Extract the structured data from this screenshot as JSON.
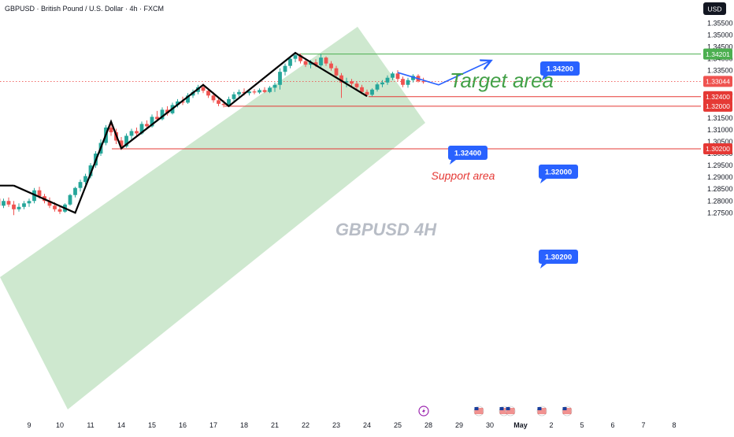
{
  "header": {
    "symbol_title": "GBPUSD · British Pound / U.S. Dollar · 4h · FXCM",
    "currency_button": "USD"
  },
  "watermark": "GBPUSD 4H",
  "annotations": {
    "target_text": "Target area",
    "support_text": "Support area"
  },
  "colors": {
    "bull": "#26a69a",
    "bear": "#ef5350",
    "channel": "#a5d6a7",
    "target": "#4caf50",
    "support": "#e53935",
    "callout": "#2962ff",
    "projection": "#2962ff"
  },
  "chart_data": {
    "type": "candlestick",
    "title": "GBPUSD · British Pound / U.S. Dollar · 4h · FXCM",
    "ylim": [
      1.2715,
      1.3565
    ],
    "y_ticks": [
      "1.35500",
      "1.35000",
      "1.34500",
      "1.34000",
      "1.33500",
      "1.32500",
      "1.31500",
      "1.31000",
      "1.30500",
      "1.30000",
      "1.29500",
      "1.29000",
      "1.28500",
      "1.28000",
      "1.27500"
    ],
    "x_ticks": [
      "9",
      "10",
      "11",
      "14",
      "15",
      "16",
      "17",
      "18",
      "21",
      "22",
      "23",
      "24",
      "25",
      "28",
      "29",
      "30",
      "May",
      "2",
      "5",
      "6",
      "7",
      "8"
    ],
    "current_price": "1.33044",
    "price_labels": [
      "1.34201",
      "1.33044",
      "1.32400",
      "1.32000",
      "1.30200"
    ],
    "levels": [
      {
        "name": "Target area",
        "value": 1.342,
        "label": "1.34200"
      },
      {
        "name": "Support area",
        "value": 1.324,
        "label": "1.32400"
      },
      {
        "value": 1.32,
        "label": "1.32000"
      },
      {
        "value": 1.302,
        "label": "1.30200"
      }
    ],
    "zigzag": [
      {
        "x": "Apr 8 12:00",
        "y": 1.2865
      },
      {
        "x": "Apr 10 12:00",
        "y": 1.275
      },
      {
        "x": "Apr 11 16:00",
        "y": 1.3135
      },
      {
        "x": "Apr 14 00:00",
        "y": 1.3022
      },
      {
        "x": "Apr 16 16:00",
        "y": 1.329
      },
      {
        "x": "Apr 17 12:00",
        "y": 1.32
      },
      {
        "x": "Apr 21 16:00",
        "y": 1.3425
      },
      {
        "x": "Apr 24 00:00",
        "y": 1.3242
      }
    ],
    "projection": [
      {
        "x": "Apr 25 00:00",
        "y": 1.3342
      },
      {
        "x": "Apr 26 08:00",
        "y": 1.329
      },
      {
        "x": "Apr 30 00:00",
        "y": 1.339
      }
    ],
    "ohlc": [
      {
        "t": "Apr 8 00:00",
        "o": 1.281,
        "h": 1.282,
        "l": 1.2765,
        "c": 1.278
      },
      {
        "t": "Apr 8 04:00",
        "o": 1.278,
        "h": 1.281,
        "l": 1.277,
        "c": 1.28
      },
      {
        "t": "Apr 8 08:00",
        "o": 1.28,
        "h": 1.2815,
        "l": 1.2775,
        "c": 1.2785
      },
      {
        "t": "Apr 8 12:00",
        "o": 1.2785,
        "h": 1.28,
        "l": 1.274,
        "c": 1.2765
      },
      {
        "t": "Apr 8 16:00",
        "o": 1.2765,
        "h": 1.279,
        "l": 1.2755,
        "c": 1.2775
      },
      {
        "t": "Apr 8 20:00",
        "o": 1.2775,
        "h": 1.28,
        "l": 1.2765,
        "c": 1.279
      },
      {
        "t": "Apr 9 00:00",
        "o": 1.279,
        "h": 1.281,
        "l": 1.2775,
        "c": 1.28
      },
      {
        "t": "Apr 9 04:00",
        "o": 1.28,
        "h": 1.2855,
        "l": 1.279,
        "c": 1.2845
      },
      {
        "t": "Apr 9 08:00",
        "o": 1.2845,
        "h": 1.286,
        "l": 1.281,
        "c": 1.282
      },
      {
        "t": "Apr 9 12:00",
        "o": 1.282,
        "h": 1.283,
        "l": 1.279,
        "c": 1.28
      },
      {
        "t": "Apr 9 16:00",
        "o": 1.28,
        "h": 1.2815,
        "l": 1.277,
        "c": 1.278
      },
      {
        "t": "Apr 9 20:00",
        "o": 1.278,
        "h": 1.2795,
        "l": 1.2755,
        "c": 1.2765
      },
      {
        "t": "Apr 10 00:00",
        "o": 1.2765,
        "h": 1.278,
        "l": 1.2745,
        "c": 1.2755
      },
      {
        "t": "Apr 10 04:00",
        "o": 1.2755,
        "h": 1.279,
        "l": 1.275,
        "c": 1.2785
      },
      {
        "t": "Apr 10 08:00",
        "o": 1.2785,
        "h": 1.283,
        "l": 1.278,
        "c": 1.2825
      },
      {
        "t": "Apr 10 12:00",
        "o": 1.2825,
        "h": 1.286,
        "l": 1.2815,
        "c": 1.2855
      },
      {
        "t": "Apr 10 16:00",
        "o": 1.2855,
        "h": 1.289,
        "l": 1.284,
        "c": 1.288
      },
      {
        "t": "Apr 10 20:00",
        "o": 1.288,
        "h": 1.2915,
        "l": 1.287,
        "c": 1.2905
      },
      {
        "t": "Apr 11 00:00",
        "o": 1.2905,
        "h": 1.296,
        "l": 1.2895,
        "c": 1.295
      },
      {
        "t": "Apr 11 04:00",
        "o": 1.295,
        "h": 1.301,
        "l": 1.294,
        "c": 1.3
      },
      {
        "t": "Apr 11 08:00",
        "o": 1.3,
        "h": 1.306,
        "l": 1.299,
        "c": 1.3045
      },
      {
        "t": "Apr 11 12:00",
        "o": 1.3045,
        "h": 1.312,
        "l": 1.3035,
        "c": 1.311
      },
      {
        "t": "Apr 11 16:00",
        "o": 1.311,
        "h": 1.314,
        "l": 1.3075,
        "c": 1.309
      },
      {
        "t": "Apr 11 20:00",
        "o": 1.309,
        "h": 1.3105,
        "l": 1.304,
        "c": 1.3055
      },
      {
        "t": "Apr 14 00:00",
        "o": 1.3055,
        "h": 1.307,
        "l": 1.3015,
        "c": 1.303
      },
      {
        "t": "Apr 14 04:00",
        "o": 1.303,
        "h": 1.3085,
        "l": 1.3025,
        "c": 1.3075
      },
      {
        "t": "Apr 14 08:00",
        "o": 1.3075,
        "h": 1.3105,
        "l": 1.306,
        "c": 1.3095
      },
      {
        "t": "Apr 14 12:00",
        "o": 1.3095,
        "h": 1.311,
        "l": 1.307,
        "c": 1.3085
      },
      {
        "t": "Apr 14 16:00",
        "o": 1.3085,
        "h": 1.3135,
        "l": 1.308,
        "c": 1.3125
      },
      {
        "t": "Apr 14 20:00",
        "o": 1.3125,
        "h": 1.314,
        "l": 1.3105,
        "c": 1.3115
      },
      {
        "t": "Apr 15 00:00",
        "o": 1.3115,
        "h": 1.3165,
        "l": 1.311,
        "c": 1.3155
      },
      {
        "t": "Apr 15 04:00",
        "o": 1.3155,
        "h": 1.318,
        "l": 1.3135,
        "c": 1.3145
      },
      {
        "t": "Apr 15 08:00",
        "o": 1.3145,
        "h": 1.3195,
        "l": 1.314,
        "c": 1.3185
      },
      {
        "t": "Apr 15 12:00",
        "o": 1.3185,
        "h": 1.32,
        "l": 1.316,
        "c": 1.317
      },
      {
        "t": "Apr 15 16:00",
        "o": 1.317,
        "h": 1.3215,
        "l": 1.3165,
        "c": 1.3205
      },
      {
        "t": "Apr 15 20:00",
        "o": 1.3205,
        "h": 1.323,
        "l": 1.3195,
        "c": 1.322
      },
      {
        "t": "Apr 16 00:00",
        "o": 1.322,
        "h": 1.324,
        "l": 1.3205,
        "c": 1.3215
      },
      {
        "t": "Apr 16 04:00",
        "o": 1.3215,
        "h": 1.3255,
        "l": 1.321,
        "c": 1.3245
      },
      {
        "t": "Apr 16 08:00",
        "o": 1.3245,
        "h": 1.327,
        "l": 1.3235,
        "c": 1.326
      },
      {
        "t": "Apr 16 12:00",
        "o": 1.326,
        "h": 1.329,
        "l": 1.325,
        "c": 1.328
      },
      {
        "t": "Apr 16 16:00",
        "o": 1.328,
        "h": 1.3295,
        "l": 1.3255,
        "c": 1.3265
      },
      {
        "t": "Apr 16 20:00",
        "o": 1.3265,
        "h": 1.3275,
        "l": 1.3235,
        "c": 1.3245
      },
      {
        "t": "Apr 17 00:00",
        "o": 1.3245,
        "h": 1.326,
        "l": 1.3215,
        "c": 1.3225
      },
      {
        "t": "Apr 17 04:00",
        "o": 1.3225,
        "h": 1.3235,
        "l": 1.32,
        "c": 1.321
      },
      {
        "t": "Apr 17 08:00",
        "o": 1.321,
        "h": 1.3225,
        "l": 1.3195,
        "c": 1.3205
      },
      {
        "t": "Apr 17 12:00",
        "o": 1.3205,
        "h": 1.324,
        "l": 1.32,
        "c": 1.323
      },
      {
        "t": "Apr 17 16:00",
        "o": 1.323,
        "h": 1.326,
        "l": 1.322,
        "c": 1.325
      },
      {
        "t": "Apr 17 20:00",
        "o": 1.325,
        "h": 1.327,
        "l": 1.324,
        "c": 1.326
      },
      {
        "t": "Apr 18 00:00",
        "o": 1.326,
        "h": 1.3275,
        "l": 1.3245,
        "c": 1.3255
      },
      {
        "t": "Apr 18 04:00",
        "o": 1.3255,
        "h": 1.327,
        "l": 1.3245,
        "c": 1.3262
      },
      {
        "t": "Apr 18 08:00",
        "o": 1.3262,
        "h": 1.3272,
        "l": 1.325,
        "c": 1.3258
      },
      {
        "t": "Apr 18 12:00",
        "o": 1.3258,
        "h": 1.3275,
        "l": 1.3252,
        "c": 1.3268
      },
      {
        "t": "Apr 18 16:00",
        "o": 1.3268,
        "h": 1.328,
        "l": 1.3255,
        "c": 1.326
      },
      {
        "t": "Apr 18 20:00",
        "o": 1.326,
        "h": 1.3285,
        "l": 1.3255,
        "c": 1.3278
      },
      {
        "t": "Apr 21 00:00",
        "o": 1.3278,
        "h": 1.33,
        "l": 1.326,
        "c": 1.329
      },
      {
        "t": "Apr 21 04:00",
        "o": 1.329,
        "h": 1.336,
        "l": 1.327,
        "c": 1.3345
      },
      {
        "t": "Apr 21 08:00",
        "o": 1.3345,
        "h": 1.338,
        "l": 1.333,
        "c": 1.337
      },
      {
        "t": "Apr 21 12:00",
        "o": 1.337,
        "h": 1.341,
        "l": 1.336,
        "c": 1.34
      },
      {
        "t": "Apr 21 16:00",
        "o": 1.34,
        "h": 1.3425,
        "l": 1.3385,
        "c": 1.3415
      },
      {
        "t": "Apr 21 20:00",
        "o": 1.3415,
        "h": 1.3422,
        "l": 1.338,
        "c": 1.339
      },
      {
        "t": "Apr 22 00:00",
        "o": 1.339,
        "h": 1.34,
        "l": 1.3365,
        "c": 1.3375
      },
      {
        "t": "Apr 22 04:00",
        "o": 1.3375,
        "h": 1.3395,
        "l": 1.336,
        "c": 1.3385
      },
      {
        "t": "Apr 22 08:00",
        "o": 1.3385,
        "h": 1.3398,
        "l": 1.3365,
        "c": 1.3372
      },
      {
        "t": "Apr 22 12:00",
        "o": 1.3372,
        "h": 1.342,
        "l": 1.3365,
        "c": 1.3405
      },
      {
        "t": "Apr 22 16:00",
        "o": 1.3405,
        "h": 1.341,
        "l": 1.337,
        "c": 1.338
      },
      {
        "t": "Apr 22 20:00",
        "o": 1.338,
        "h": 1.339,
        "l": 1.335,
        "c": 1.336
      },
      {
        "t": "Apr 23 00:00",
        "o": 1.336,
        "h": 1.337,
        "l": 1.332,
        "c": 1.333
      },
      {
        "t": "Apr 23 04:00",
        "o": 1.333,
        "h": 1.334,
        "l": 1.3235,
        "c": 1.33
      },
      {
        "t": "Apr 23 08:00",
        "o": 1.33,
        "h": 1.332,
        "l": 1.328,
        "c": 1.3305
      },
      {
        "t": "Apr 23 12:00",
        "o": 1.3305,
        "h": 1.3315,
        "l": 1.3285,
        "c": 1.3295
      },
      {
        "t": "Apr 23 16:00",
        "o": 1.3295,
        "h": 1.3305,
        "l": 1.327,
        "c": 1.328
      },
      {
        "t": "Apr 23 20:00",
        "o": 1.328,
        "h": 1.329,
        "l": 1.325,
        "c": 1.326
      },
      {
        "t": "Apr 24 00:00",
        "o": 1.326,
        "h": 1.327,
        "l": 1.324,
        "c": 1.3248
      },
      {
        "t": "Apr 24 04:00",
        "o": 1.3248,
        "h": 1.3275,
        "l": 1.3242,
        "c": 1.327
      },
      {
        "t": "Apr 24 08:00",
        "o": 1.327,
        "h": 1.33,
        "l": 1.3262,
        "c": 1.3292
      },
      {
        "t": "Apr 24 12:00",
        "o": 1.3292,
        "h": 1.331,
        "l": 1.328,
        "c": 1.33
      },
      {
        "t": "Apr 24 16:00",
        "o": 1.33,
        "h": 1.333,
        "l": 1.329,
        "c": 1.332
      },
      {
        "t": "Apr 24 20:00",
        "o": 1.332,
        "h": 1.3345,
        "l": 1.331,
        "c": 1.3338
      },
      {
        "t": "Apr 25 00:00",
        "o": 1.3338,
        "h": 1.3352,
        "l": 1.3305,
        "c": 1.3315
      },
      {
        "t": "Apr 25 04:00",
        "o": 1.3315,
        "h": 1.3325,
        "l": 1.328,
        "c": 1.329
      },
      {
        "t": "Apr 25 08:00",
        "o": 1.329,
        "h": 1.332,
        "l": 1.3278,
        "c": 1.331
      },
      {
        "t": "Apr 25 12:00",
        "o": 1.331,
        "h": 1.3335,
        "l": 1.33,
        "c": 1.3328
      },
      {
        "t": "Apr 25 16:00",
        "o": 1.3328,
        "h": 1.3335,
        "l": 1.33,
        "c": 1.3305
      },
      {
        "t": "Apr 25 20:00",
        "o": 1.3305,
        "h": 1.332,
        "l": 1.3295,
        "c": 1.3304
      }
    ]
  },
  "bottom_toolbar": {
    "icons": [
      "lightning-icon",
      "us-flag-icon",
      "us-flag-icon",
      "us-flag-icon",
      "us-flag-icon",
      "us-flag-icon"
    ]
  }
}
